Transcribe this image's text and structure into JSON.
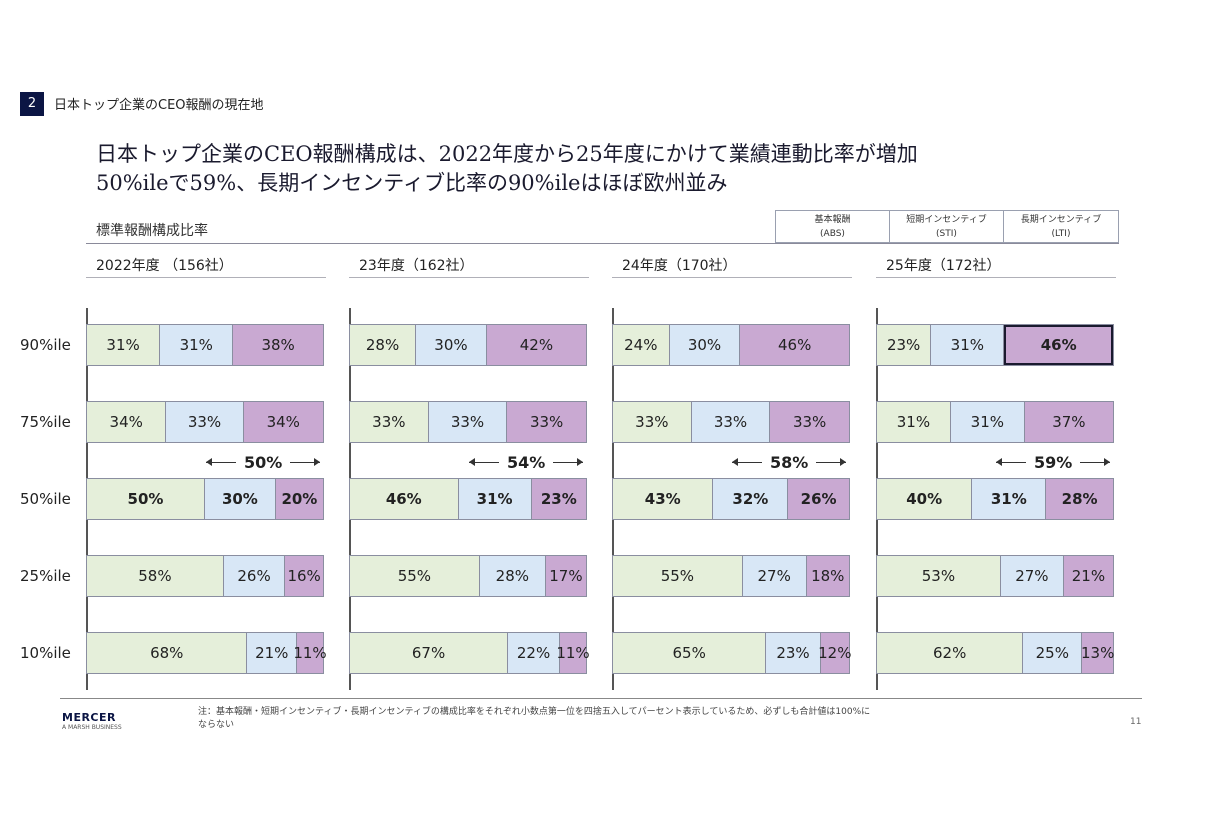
{
  "section": {
    "number": "2",
    "title": "日本トップ企業のCEO報酬の現在地"
  },
  "headline": {
    "line1": "日本トップ企業のCEO報酬構成は、2022年度から25年度にかけて業績連動比率が増加",
    "line2": "50%ileで59%、長期インセンティブ比率の90%ileはほぼ欧州並み"
  },
  "subtitle": "標準報酬構成比率",
  "legend": [
    {
      "name": "基本報酬",
      "code": "(ABS)",
      "color": "#e5efda"
    },
    {
      "name": "短期インセンティブ",
      "code": "(STI)",
      "color": "#d8e7f6"
    },
    {
      "name": "長期インセンティブ",
      "code": "(LTI)",
      "color": "#c9a9d2"
    }
  ],
  "row_labels": [
    "90%ile",
    "75%ile",
    "50%ile",
    "25%ile",
    "10%ile"
  ],
  "chart_data": {
    "type": "bar",
    "orientation": "horizontal-stacked-100",
    "segments": [
      "基本報酬 (ABS)",
      "短期インセンティブ (STI)",
      "長期インセンティブ (LTI)"
    ],
    "categories": [
      "90%ile",
      "75%ile",
      "50%ile",
      "25%ile",
      "10%ile"
    ],
    "panels": [
      {
        "title": "2022年度 （156社）",
        "variable_ratio": "50%",
        "values": [
          [
            31,
            31,
            38
          ],
          [
            34,
            33,
            34
          ],
          [
            50,
            30,
            20
          ],
          [
            58,
            26,
            16
          ],
          [
            68,
            21,
            11
          ]
        ]
      },
      {
        "title": "23年度（162社）",
        "variable_ratio": "54%",
        "values": [
          [
            28,
            30,
            42
          ],
          [
            33,
            33,
            33
          ],
          [
            46,
            31,
            23
          ],
          [
            55,
            28,
            17
          ],
          [
            67,
            22,
            11
          ]
        ]
      },
      {
        "title": "24年度（170社）",
        "variable_ratio": "58%",
        "values": [
          [
            24,
            30,
            46
          ],
          [
            33,
            33,
            33
          ],
          [
            43,
            32,
            26
          ],
          [
            55,
            27,
            18
          ],
          [
            65,
            23,
            12
          ]
        ]
      },
      {
        "title": "25年度（172社）",
        "variable_ratio": "59%",
        "values": [
          [
            23,
            31,
            46
          ],
          [
            31,
            31,
            37
          ],
          [
            40,
            31,
            28
          ],
          [
            53,
            27,
            21
          ],
          [
            62,
            25,
            13
          ]
        ]
      }
    ],
    "highlight": {
      "panel": 3,
      "category": "90%ile",
      "segment": "LTI"
    }
  },
  "footer": {
    "brand": "MERCER",
    "brand_sub": "A MARSH BUSINESS",
    "note_line1": "注：基本報酬・短期インセンティブ・長期インセンティブの構成比率をそれぞれ小数点第一位を四捨五入してパーセント表示しているため、必ずしも合計値は100%に",
    "note_line2": "ならない",
    "page": "11"
  }
}
